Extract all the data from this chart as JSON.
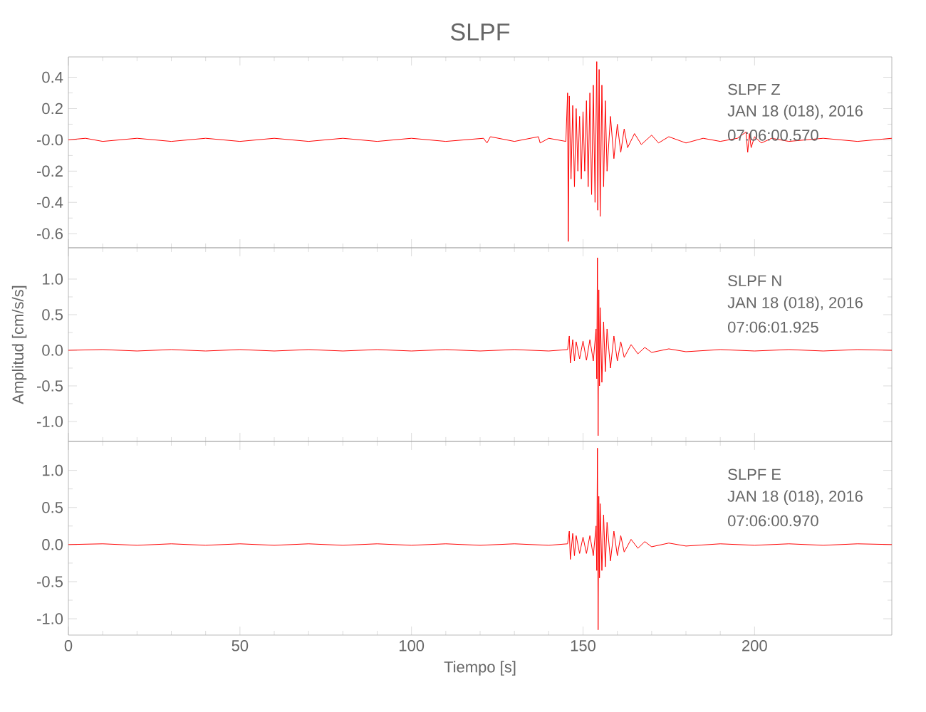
{
  "chart_data": [
    {
      "type": "line",
      "title": "SLPF",
      "annotations": [
        "SLPF Z",
        "JAN 18 (018), 2016",
        "07:06:00.570"
      ],
      "tick_labels": "y",
      "xlim": [
        0,
        240
      ],
      "xticks": [
        0,
        50,
        100,
        150,
        200
      ],
      "ylim": [
        -0.69,
        0.53
      ],
      "yticks": [
        {
          "value": -0.6,
          "label": "-0.6"
        },
        {
          "value": -0.4,
          "label": "-0.4"
        },
        {
          "value": -0.2,
          "label": "-0.2"
        },
        {
          "value": 0,
          "label": "-0.0"
        },
        {
          "value": 0.2,
          "label": "0.2"
        },
        {
          "value": 0.4,
          "label": "0.4"
        }
      ],
      "series": [
        {
          "color": "#ff0000",
          "x": [
            0,
            5,
            10,
            20,
            30,
            40,
            50,
            60,
            70,
            80,
            90,
            100,
            110,
            121,
            122,
            123,
            130,
            137,
            137.5,
            140,
            145,
            145.5,
            145.7,
            146,
            146.5,
            147,
            147.5,
            148,
            148.5,
            149,
            149.5,
            150,
            150.5,
            151,
            151.5,
            152,
            152.5,
            153,
            153.5,
            154,
            154.3,
            154.7,
            155,
            155.5,
            156,
            156.5,
            157,
            158,
            159,
            160,
            161,
            162,
            163,
            165,
            167,
            170,
            172,
            175,
            180,
            185,
            190,
            195,
            197.5,
            198,
            198.5,
            199,
            200,
            202,
            205,
            210,
            220,
            230,
            240
          ],
          "values": [
            0,
            0.01,
            -0.01,
            0.01,
            -0.01,
            0.01,
            -0.01,
            0.01,
            -0.01,
            0.01,
            -0.01,
            0.01,
            -0.01,
            0.01,
            -0.02,
            0.02,
            -0.01,
            0.02,
            -0.02,
            0.01,
            -0.01,
            0.3,
            -0.65,
            0.28,
            -0.25,
            0.22,
            -0.3,
            0.2,
            -0.2,
            0.15,
            -0.25,
            0.18,
            -0.2,
            0.25,
            -0.3,
            0.3,
            -0.35,
            0.35,
            -0.4,
            0.5,
            -0.45,
            0.45,
            -0.49,
            0.35,
            -0.3,
            0.25,
            -0.2,
            0.15,
            -0.12,
            0.1,
            -0.08,
            0.07,
            -0.05,
            0.04,
            -0.03,
            0.03,
            -0.02,
            0.02,
            -0.02,
            0.01,
            -0.01,
            0.01,
            0.05,
            -0.08,
            0.04,
            -0.05,
            0.02,
            -0.02,
            0.01,
            -0.01,
            0.01,
            -0.01,
            0.01
          ]
        }
      ]
    },
    {
      "type": "line",
      "ylabel": "Amplitud [cm/s/s]",
      "annotations": [
        "SLPF N",
        "JAN 18 (018), 2016",
        "07:06:01.925"
      ],
      "tick_labels": "y",
      "xlim": [
        0,
        240
      ],
      "xticks": [
        0,
        50,
        100,
        150,
        200
      ],
      "ylim": [
        -1.28,
        1.44
      ],
      "yticks": [
        {
          "value": -1.0,
          "label": "-1.0"
        },
        {
          "value": -0.5,
          "label": "-0.5"
        },
        {
          "value": 0,
          "label": "0.0"
        },
        {
          "value": 0.5,
          "label": "0.5"
        },
        {
          "value": 1.0,
          "label": "1.0"
        }
      ],
      "series": [
        {
          "color": "#ff0000",
          "x": [
            0,
            10,
            20,
            30,
            40,
            50,
            60,
            70,
            80,
            90,
            100,
            110,
            120,
            130,
            140,
            145.5,
            146,
            146.3,
            147,
            147.5,
            148,
            149,
            150,
            151,
            152,
            153,
            153.8,
            154,
            154.2,
            154.4,
            154.6,
            154.8,
            155,
            155.5,
            156,
            156.5,
            157,
            158,
            159,
            160,
            161,
            162,
            164,
            166,
            168,
            170,
            175,
            180,
            190,
            200,
            210,
            220,
            230,
            240
          ],
          "values": [
            0,
            0.01,
            -0.01,
            0.01,
            -0.01,
            0.01,
            -0.01,
            0.01,
            -0.01,
            0.01,
            -0.01,
            0.01,
            -0.01,
            0.01,
            -0.01,
            0.01,
            0.2,
            -0.18,
            0.15,
            -0.15,
            0.12,
            -0.12,
            0.13,
            -0.14,
            0.15,
            -0.15,
            0.3,
            -0.4,
            1.3,
            -1.2,
            0.85,
            -0.5,
            0.6,
            -0.45,
            0.4,
            -0.3,
            0.3,
            -0.25,
            0.2,
            -0.15,
            0.12,
            -0.1,
            0.08,
            -0.05,
            0.04,
            -0.03,
            0.02,
            -0.02,
            0.01,
            -0.01,
            0.01,
            -0.01,
            0.01,
            0
          ]
        }
      ]
    },
    {
      "type": "line",
      "xlabel": "Tiempo [s]",
      "annotations": [
        "SLPF E",
        "JAN 18 (018), 2016",
        "07:06:00.970"
      ],
      "xlim": [
        0,
        240
      ],
      "xticks": [
        0,
        50,
        100,
        150,
        200
      ],
      "ylim": [
        -1.22,
        1.39
      ],
      "yticks": [
        {
          "value": -1.0,
          "label": "-1.0"
        },
        {
          "value": -0.5,
          "label": "-0.5"
        },
        {
          "value": 0,
          "label": "0.0"
        },
        {
          "value": 0.5,
          "label": "0.5"
        },
        {
          "value": 1.0,
          "label": "1.0"
        }
      ],
      "series": [
        {
          "color": "#ff0000",
          "x": [
            0,
            10,
            20,
            30,
            40,
            50,
            60,
            70,
            80,
            90,
            100,
            110,
            120,
            130,
            140,
            145.5,
            146,
            146.3,
            147,
            147.5,
            148,
            149,
            150,
            151,
            152,
            153,
            153.8,
            154,
            154.2,
            154.4,
            154.6,
            154.8,
            155,
            155.5,
            156,
            156.5,
            157,
            158,
            159,
            160,
            161,
            162,
            164,
            166,
            168,
            170,
            175,
            180,
            190,
            200,
            210,
            220,
            230,
            240
          ],
          "values": [
            0,
            0.01,
            -0.01,
            0.01,
            -0.01,
            0.01,
            -0.01,
            0.01,
            -0.01,
            0.01,
            -0.01,
            0.01,
            -0.01,
            0.01,
            -0.01,
            0.01,
            0.18,
            -0.2,
            0.15,
            -0.15,
            0.12,
            -0.12,
            0.1,
            -0.12,
            0.12,
            -0.15,
            0.25,
            -0.35,
            1.3,
            -1.15,
            0.65,
            -0.45,
            0.55,
            -0.35,
            0.4,
            -0.3,
            0.3,
            -0.22,
            0.18,
            -0.15,
            0.12,
            -0.1,
            0.07,
            -0.05,
            0.04,
            -0.03,
            0.02,
            -0.02,
            0.01,
            -0.01,
            0.01,
            -0.01,
            0.01,
            0
          ]
        }
      ]
    }
  ]
}
